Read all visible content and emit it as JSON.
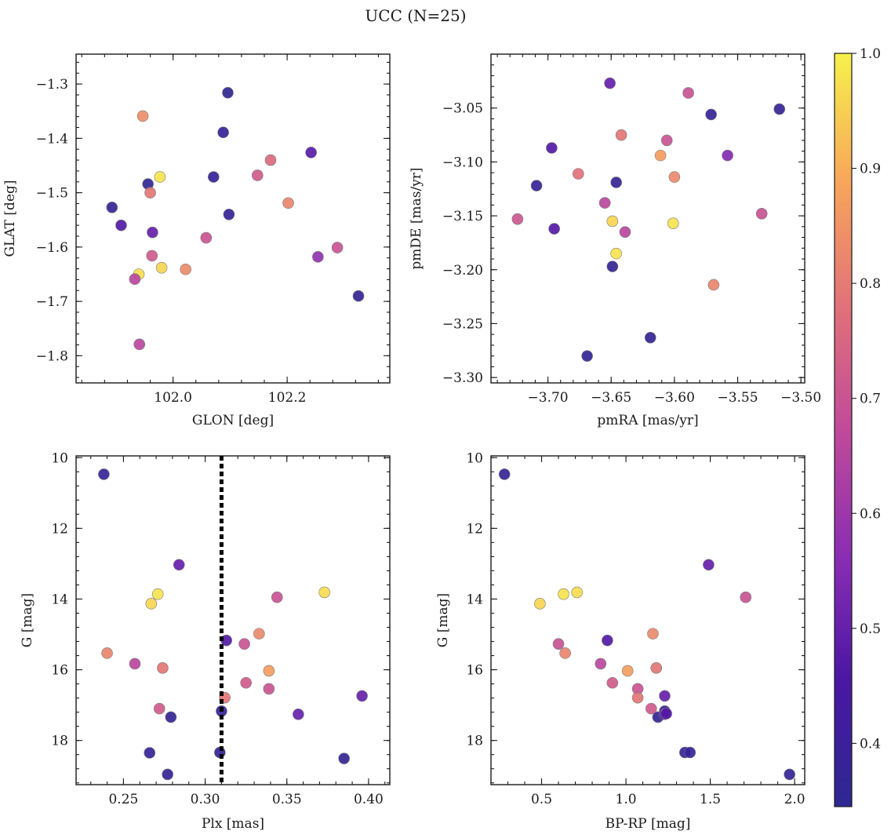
{
  "figure_title": "UCC (N=25)",
  "colorbar": {
    "range": [
      0.345,
      1.0
    ],
    "ticks": [
      0.4,
      0.5,
      0.6,
      0.7,
      0.8,
      0.9,
      1.0
    ],
    "tick_labels": [
      "0.4",
      "0.5",
      "0.6",
      "0.7",
      "0.8",
      "0.9",
      "1.0"
    ],
    "colormap": "plasma"
  },
  "chart_data": [
    {
      "type": "scatter",
      "id": "glon-glat",
      "xlabel": "GLON [deg]",
      "ylabel": "GLAT [deg]",
      "xlim": [
        101.83,
        102.38
      ],
      "ylim": [
        -1.85,
        -1.245
      ],
      "xticks": [
        102.0,
        102.2
      ],
      "xtick_labels": [
        "102.0",
        "102.2"
      ],
      "yticks": [
        -1.3,
        -1.4,
        -1.5,
        -1.6,
        -1.7,
        -1.8
      ],
      "ytick_labels": [
        "−1.3",
        "−1.4",
        "−1.5",
        "−1.6",
        "−1.7",
        "−1.8"
      ],
      "x": [
        102.096,
        102.088,
        101.947,
        102.171,
        102.242,
        101.977,
        102.148,
        102.071,
        101.956,
        101.96,
        102.202,
        101.893,
        102.098,
        101.909,
        101.964,
        102.058,
        102.288,
        101.963,
        102.254,
        101.98,
        102.022,
        101.94,
        101.933,
        102.325,
        101.941
      ],
      "y": [
        -1.316,
        -1.389,
        -1.359,
        -1.44,
        -1.426,
        -1.471,
        -1.468,
        -1.471,
        -1.484,
        -1.5,
        -1.519,
        -1.527,
        -1.54,
        -1.56,
        -1.573,
        -1.583,
        -1.601,
        -1.616,
        -1.618,
        -1.638,
        -1.641,
        -1.65,
        -1.659,
        -1.69,
        -1.779
      ],
      "values": [
        0.36,
        0.38,
        0.84,
        0.76,
        0.48,
        0.98,
        0.72,
        0.38,
        0.36,
        0.79,
        0.82,
        0.37,
        0.38,
        0.47,
        0.5,
        0.7,
        0.7,
        0.72,
        0.58,
        0.96,
        0.83,
        0.97,
        0.66,
        0.37,
        0.66
      ]
    },
    {
      "type": "scatter",
      "id": "pm",
      "xlabel": "pmRA [mas/yr]",
      "ylabel": "pmDE [mas/yr]",
      "xlim": [
        -3.745,
        -3.497
      ],
      "ylim": [
        -3.305,
        -3.0
      ],
      "xticks": [
        -3.7,
        -3.65,
        -3.6,
        -3.55,
        -3.5
      ],
      "xtick_labels": [
        "−3.70",
        "−3.65",
        "−3.60",
        "−3.55",
        "−3.50"
      ],
      "yticks": [
        -3.05,
        -3.1,
        -3.15,
        -3.2,
        -3.25,
        -3.3
      ],
      "ytick_labels": [
        "−3.05",
        "−3.10",
        "−3.15",
        "−3.20",
        "−3.25",
        "−3.30"
      ],
      "x": [
        -3.651,
        -3.589,
        -3.517,
        -3.571,
        -3.642,
        -3.606,
        -3.697,
        -3.611,
        -3.558,
        -3.676,
        -3.6,
        -3.709,
        -3.646,
        -3.655,
        -3.724,
        -3.531,
        -3.649,
        -3.601,
        -3.695,
        -3.639,
        -3.646,
        -3.649,
        -3.569,
        -3.619,
        -3.669
      ],
      "y": [
        -3.027,
        -3.036,
        -3.051,
        -3.056,
        -3.075,
        -3.08,
        -3.087,
        -3.094,
        -3.094,
        -3.111,
        -3.114,
        -3.122,
        -3.119,
        -3.138,
        -3.153,
        -3.148,
        -3.155,
        -3.157,
        -3.162,
        -3.165,
        -3.185,
        -3.197,
        -3.214,
        -3.263,
        -3.28
      ],
      "values": [
        0.5,
        0.7,
        0.38,
        0.38,
        0.79,
        0.7,
        0.47,
        0.87,
        0.55,
        0.78,
        0.83,
        0.38,
        0.38,
        0.66,
        0.71,
        0.7,
        0.96,
        0.98,
        0.47,
        0.66,
        0.98,
        0.37,
        0.82,
        0.37,
        0.37
      ]
    },
    {
      "type": "scatter",
      "id": "plx-g",
      "xlabel": "Plx [mas]",
      "ylabel": "G [mag]",
      "xlim": [
        0.221,
        0.413
      ],
      "ylim": [
        19.25,
        9.95
      ],
      "xticks": [
        0.25,
        0.3,
        0.35,
        0.4
      ],
      "xtick_labels": [
        "0.25",
        "0.30",
        "0.35",
        "0.40"
      ],
      "yticks": [
        10,
        12,
        14,
        16,
        18
      ],
      "ytick_labels": [
        "10",
        "12",
        "14",
        "16",
        "18"
      ],
      "vline": 0.31,
      "x": [
        0.238,
        0.284,
        0.373,
        0.271,
        0.267,
        0.344,
        0.24,
        0.333,
        0.313,
        0.324,
        0.257,
        0.274,
        0.339,
        0.325,
        0.339,
        0.396,
        0.312,
        0.272,
        0.31,
        0.279,
        0.357,
        0.309,
        0.266,
        0.385,
        0.277
      ],
      "y": [
        10.47,
        13.03,
        13.81,
        13.86,
        14.13,
        13.95,
        15.53,
        14.98,
        15.17,
        15.27,
        15.83,
        15.95,
        16.03,
        16.37,
        16.54,
        16.74,
        16.79,
        17.1,
        17.17,
        17.34,
        17.26,
        18.34,
        18.35,
        18.51,
        18.96
      ],
      "values": [
        0.38,
        0.5,
        0.97,
        0.98,
        0.96,
        0.7,
        0.82,
        0.83,
        0.47,
        0.7,
        0.66,
        0.79,
        0.87,
        0.72,
        0.7,
        0.5,
        0.79,
        0.72,
        0.38,
        0.37,
        0.5,
        0.37,
        0.38,
        0.37,
        0.37
      ]
    },
    {
      "type": "scatter",
      "id": "cmd",
      "xlabel": "BP-RP [mag]",
      "ylabel": "G [mag]",
      "xlim": [
        0.2,
        2.06
      ],
      "ylim": [
        19.25,
        9.95
      ],
      "xticks": [
        0.5,
        1.0,
        1.5,
        2.0
      ],
      "xtick_labels": [
        "0.5",
        "1.0",
        "1.5",
        "2.0"
      ],
      "yticks": [
        10,
        12,
        14,
        16,
        18
      ],
      "ytick_labels": [
        "10",
        "12",
        "14",
        "16",
        "18"
      ],
      "x": [
        0.28,
        1.49,
        0.71,
        0.63,
        0.49,
        1.71,
        0.64,
        1.16,
        0.89,
        0.6,
        0.85,
        1.18,
        1.01,
        0.92,
        1.07,
        1.23,
        1.07,
        1.15,
        1.23,
        1.19,
        1.23,
        1.35,
        1.38,
        1.97,
        1.24
      ],
      "y": [
        10.47,
        13.03,
        13.81,
        13.86,
        14.13,
        13.95,
        15.53,
        14.98,
        15.17,
        15.27,
        15.83,
        15.95,
        16.03,
        16.37,
        16.54,
        16.74,
        16.79,
        17.1,
        17.17,
        17.34,
        17.26,
        18.34,
        18.34,
        18.96,
        17.24
      ],
      "values": [
        0.38,
        0.5,
        0.97,
        0.98,
        0.96,
        0.7,
        0.82,
        0.83,
        0.47,
        0.7,
        0.66,
        0.79,
        0.87,
        0.72,
        0.7,
        0.5,
        0.79,
        0.72,
        0.38,
        0.37,
        0.5,
        0.37,
        0.38,
        0.37,
        0.47
      ]
    }
  ]
}
